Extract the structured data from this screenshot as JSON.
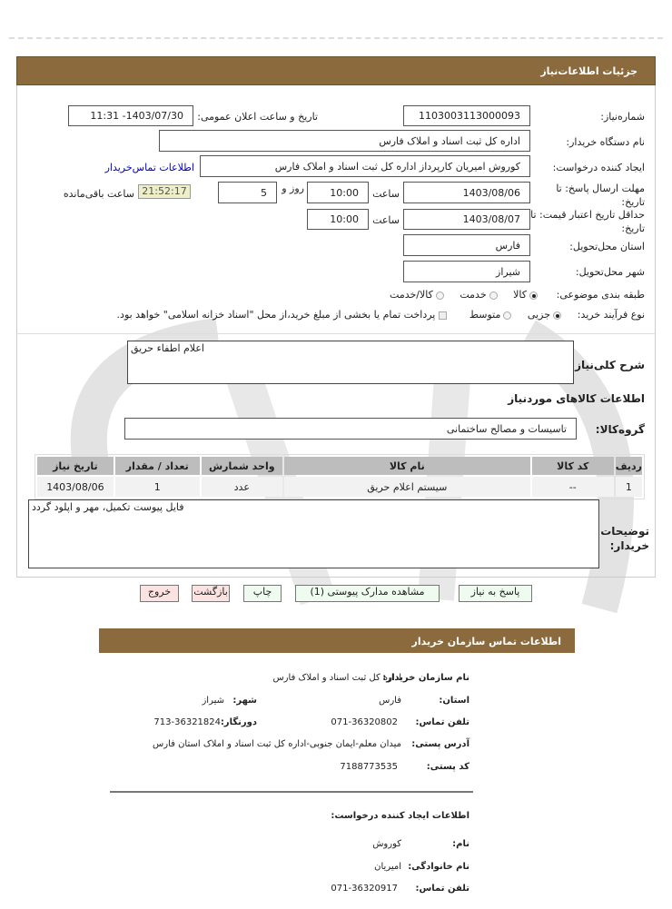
{
  "header": {
    "title": "جزئیات اطلاعات‌نیاز"
  },
  "form": {
    "need_number_label": "شماره‌نیاز:",
    "need_number": "1103003113000093",
    "announce_label": "تاریخ و ساعت اعلان عمومی:",
    "announce_value": "1403/07/30- 11:31",
    "buyer_org_label": "نام دستگاه خریدار:",
    "buyer_org": "اداره کل ثبت اسناد و املاک فارس",
    "creator_label": "ایجاد کننده درخواست:",
    "creator": "کوروش  امیریان کارپرداز اداره کل ثبت اسناد و املاک فارس",
    "contact_link": "اطلاعات تماس‌خریدار",
    "deadline_label": "مهلت ارسال پاسخ: تا تاریخ:",
    "deadline_date": "1403/08/06",
    "hour_label": "ساعت",
    "deadline_time": "10:00",
    "days": "5",
    "days_label": "روز و",
    "remaining_time": "21:52:17",
    "remaining_label": "ساعت باقی‌مانده",
    "validity_label": "حداقل تاریخ اعتبار  قیمت: تا تاریخ:",
    "validity_date": "1403/08/07",
    "validity_time": "10:00",
    "province_label": "استان محل‌تحویل:",
    "province": "فارس",
    "city_label": "شهر محل‌تحویل:",
    "city": "شیراز",
    "category_label": "طبقه بندی موضوعی:",
    "category_options": [
      "کالا",
      "خدمت",
      "کالا/خدمت"
    ],
    "category_selected": "کالا",
    "process_label": "نوع فرآیند خرید:",
    "process_options": [
      "جزیی",
      "متوسط"
    ],
    "process_selected": "جزیی",
    "payment_note": "پرداخت تمام یا بخشی از مبلغ خرید،از محل \"اسناد خزانه اسلامی\" خواهد بود."
  },
  "details": {
    "description_label": "شرح کلی‌نیاز:",
    "description": "اعلام اطفاء حریق",
    "goods_title": "اطلاعات  کالاهای موردنیاز",
    "group_label": "گروه‌کالا:",
    "group": "تاسیسات و مصالح ساختمانی",
    "table": {
      "headers": [
        "ردیف",
        "کد کالا",
        "نام کالا",
        "واحد شمارش",
        "تعداد / مقدار",
        "تاریخ نیاز"
      ],
      "rows": [
        [
          "1",
          "--",
          "سیستم اعلام حریق",
          "عدد",
          "1",
          "1403/08/06"
        ]
      ]
    },
    "notes_label": "توضیحات خریدار:",
    "notes": "فایل پیوست تکمیل، مهر و اپلود گردد"
  },
  "buttons": {
    "reply": "پاسخ به نیاز",
    "attachments": "مشاهده مدارک پیوستی (1)",
    "print": "چاپ",
    "back": "بازگشت",
    "exit": "خروج"
  },
  "contact": {
    "title": "اطلاعات تماس  سازمان خریدار",
    "org_label": "نام سازمان خریدار:",
    "org": "اداره کل ثبت اسناد و املاک فارس",
    "province_label": "استان:",
    "province": "فارس",
    "city_label": "شهر:",
    "city": "شیراز",
    "phone_label": "تلفن تماس:",
    "phone": "071-36320802",
    "fax_label": "دورنگار:",
    "fax": "713-36321824",
    "address_label": "آدرس پستی:",
    "address": "میدان معلم-ایمان جنوبی-اداره کل ثبت اسناد و املاک استان فارس",
    "postal_label": "کد پستی:",
    "postal": "7188773535",
    "creator_title": "اطلاعات ایجاد کننده درخواست:",
    "name_label": "نام:",
    "name": "کوروش",
    "family_label": "نام خانوادگی:",
    "family": "امیریان",
    "creator_phone_label": "تلفن تماس:",
    "creator_phone": "071-36320917"
  },
  "colors": {
    "header": "#8B6A3E",
    "timer_bg": "#EEEEC8",
    "link": "#0000CC"
  }
}
